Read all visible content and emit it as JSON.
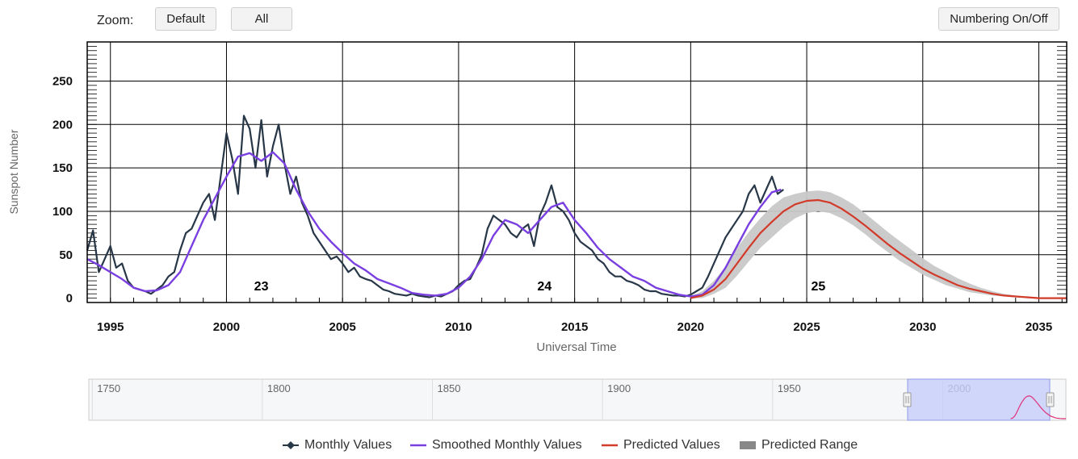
{
  "toolbar": {
    "zoom_label": "Zoom:",
    "default_label": "Default",
    "all_label": "All",
    "numbering_label": "Numbering On/Off"
  },
  "colors": {
    "monthly": "#283747",
    "smoothed": "#7a3fe0",
    "predicted": "#d23a2a",
    "range": "#c8c8c8",
    "navigator_mask": "#c7cdfa"
  },
  "chart_data": {
    "type": "line",
    "title": "",
    "xlabel": "Universal Time",
    "ylabel": "Sunspot Number",
    "xlim": [
      1994.0,
      2036.2
    ],
    "ylim": [
      -5,
      295
    ],
    "x_ticks": [
      1995,
      2000,
      2005,
      2010,
      2015,
      2020,
      2025,
      2030,
      2035
    ],
    "y_ticks": [
      0,
      50,
      100,
      150,
      200,
      250
    ],
    "grid": true,
    "legend_position": "bottom",
    "cycle_labels": [
      {
        "x": 2001.5,
        "text": "23"
      },
      {
        "x": 2013.7,
        "text": "24"
      },
      {
        "x": 2025.5,
        "text": "25"
      }
    ],
    "series": [
      {
        "name": "Monthly Values",
        "x": [
          1994.0,
          1994.25,
          1994.5,
          1994.75,
          1995.0,
          1995.25,
          1995.5,
          1995.75,
          1996.0,
          1996.25,
          1996.5,
          1996.75,
          1997.0,
          1997.25,
          1997.5,
          1997.75,
          1998.0,
          1998.25,
          1998.5,
          1998.75,
          1999.0,
          1999.25,
          1999.5,
          1999.75,
          2000.0,
          2000.25,
          2000.5,
          2000.75,
          2001.0,
          2001.25,
          2001.5,
          2001.75,
          2002.0,
          2002.25,
          2002.5,
          2002.75,
          2003.0,
          2003.25,
          2003.5,
          2003.75,
          2004.0,
          2004.25,
          2004.5,
          2004.75,
          2005.0,
          2005.25,
          2005.5,
          2005.75,
          2006.0,
          2006.25,
          2006.5,
          2006.75,
          2007.0,
          2007.25,
          2007.5,
          2007.75,
          2008.0,
          2008.25,
          2008.5,
          2008.75,
          2009.0,
          2009.25,
          2009.5,
          2009.75,
          2010.0,
          2010.25,
          2010.5,
          2010.75,
          2011.0,
          2011.25,
          2011.5,
          2011.75,
          2012.0,
          2012.25,
          2012.5,
          2012.75,
          2013.0,
          2013.25,
          2013.5,
          2013.75,
          2014.0,
          2014.25,
          2014.5,
          2014.75,
          2015.0,
          2015.25,
          2015.5,
          2015.75,
          2016.0,
          2016.25,
          2016.5,
          2016.75,
          2017.0,
          2017.25,
          2017.5,
          2017.75,
          2018.0,
          2018.25,
          2018.5,
          2018.75,
          2019.0,
          2019.25,
          2019.5,
          2019.75,
          2020.0,
          2020.25,
          2020.5,
          2020.75,
          2021.0,
          2021.25,
          2021.5,
          2021.75,
          2022.0,
          2022.25,
          2022.5,
          2022.75,
          2023.0,
          2023.25,
          2023.5,
          2023.75,
          2024.0
        ],
        "values": [
          55,
          78,
          30,
          45,
          60,
          35,
          40,
          20,
          12,
          10,
          8,
          5,
          10,
          15,
          25,
          30,
          55,
          75,
          80,
          95,
          110,
          120,
          90,
          140,
          190,
          160,
          120,
          210,
          195,
          150,
          205,
          140,
          175,
          200,
          155,
          120,
          140,
          110,
          95,
          75,
          65,
          55,
          45,
          48,
          40,
          30,
          35,
          25,
          22,
          20,
          15,
          10,
          8,
          5,
          4,
          3,
          5,
          3,
          2,
          1,
          3,
          2,
          5,
          8,
          15,
          20,
          22,
          35,
          50,
          80,
          95,
          90,
          85,
          75,
          70,
          80,
          85,
          60,
          95,
          110,
          130,
          105,
          100,
          90,
          75,
          65,
          60,
          55,
          45,
          40,
          30,
          25,
          25,
          20,
          18,
          15,
          10,
          8,
          8,
          5,
          4,
          3,
          3,
          2,
          4,
          8,
          12,
          25,
          40,
          55,
          70,
          80,
          90,
          100,
          120,
          130,
          110,
          125,
          140,
          120,
          125
        ],
        "color": "#283747"
      },
      {
        "name": "Smoothed Monthly Values",
        "x": [
          1994.0,
          1994.5,
          1995.0,
          1995.5,
          1996.0,
          1996.5,
          1997.0,
          1997.5,
          1998.0,
          1998.5,
          1999.0,
          1999.5,
          2000.0,
          2000.5,
          2001.0,
          2001.5,
          2002.0,
          2002.5,
          2003.0,
          2003.5,
          2004.0,
          2004.5,
          2005.0,
          2005.5,
          2006.0,
          2006.5,
          2007.0,
          2007.5,
          2008.0,
          2008.5,
          2009.0,
          2009.5,
          2010.0,
          2010.5,
          2011.0,
          2011.5,
          2012.0,
          2012.5,
          2013.0,
          2013.5,
          2014.0,
          2014.5,
          2015.0,
          2015.5,
          2016.0,
          2016.5,
          2017.0,
          2017.5,
          2018.0,
          2018.5,
          2019.0,
          2019.5,
          2020.0,
          2020.5,
          2021.0,
          2021.5,
          2022.0,
          2022.5,
          2023.0,
          2023.5,
          2023.9
        ],
        "values": [
          45,
          38,
          30,
          22,
          12,
          8,
          9,
          15,
          30,
          60,
          90,
          115,
          140,
          163,
          167,
          158,
          168,
          155,
          125,
          100,
          80,
          65,
          52,
          40,
          32,
          22,
          17,
          12,
          6,
          4,
          3,
          5,
          12,
          25,
          45,
          72,
          90,
          85,
          75,
          90,
          105,
          110,
          90,
          75,
          58,
          45,
          35,
          25,
          20,
          12,
          8,
          4,
          2,
          4,
          15,
          35,
          60,
          85,
          105,
          122,
          125
        ],
        "color": "#7a3fe0"
      },
      {
        "name": "Predicted Values",
        "x": [
          2020.0,
          2020.5,
          2021.0,
          2021.5,
          2022.0,
          2022.5,
          2023.0,
          2023.5,
          2024.0,
          2024.5,
          2025.0,
          2025.5,
          2026.0,
          2026.5,
          2027.0,
          2027.5,
          2028.0,
          2028.5,
          2029.0,
          2029.5,
          2030.0,
          2030.5,
          2031.0,
          2031.5,
          2032.0,
          2032.5,
          2033.0,
          2033.5,
          2034.0,
          2034.5,
          2035.0,
          2035.5,
          2036.2
        ],
        "values": [
          0,
          3,
          10,
          22,
          40,
          58,
          75,
          88,
          100,
          108,
          112,
          113,
          110,
          103,
          94,
          84,
          73,
          62,
          52,
          43,
          34,
          27,
          21,
          15,
          11,
          8,
          5,
          3,
          2,
          1,
          0,
          0,
          0
        ],
        "color": "#d23a2a"
      },
      {
        "name": "Predicted Range",
        "x": [
          2020.0,
          2020.5,
          2021.0,
          2021.5,
          2022.0,
          2022.5,
          2023.0,
          2023.5,
          2024.0,
          2024.5,
          2025.0,
          2025.5,
          2026.0,
          2026.5,
          2027.0,
          2027.5,
          2028.0,
          2028.5,
          2029.0,
          2029.5,
          2030.0,
          2030.5,
          2031.0,
          2031.5,
          2032.0,
          2032.5,
          2033.0,
          2033.5,
          2034.0,
          2034.5,
          2035.0,
          2035.5,
          2036.2
        ],
        "low": [
          0,
          0,
          5,
          12,
          26,
          42,
          58,
          70,
          82,
          92,
          98,
          100,
          98,
          92,
          84,
          74,
          63,
          53,
          43,
          35,
          27,
          21,
          15,
          11,
          7,
          5,
          3,
          2,
          1,
          0,
          0,
          0,
          0
        ],
        "high": [
          2,
          8,
          20,
          36,
          58,
          76,
          92,
          106,
          116,
          120,
          123,
          124,
          122,
          116,
          108,
          98,
          87,
          76,
          66,
          56,
          46,
          37,
          30,
          23,
          17,
          12,
          8,
          5,
          3,
          2,
          1,
          0,
          0
        ],
        "color": "#c8c8c8"
      }
    ],
    "navigator": {
      "x_ticks": [
        1750,
        1800,
        1850,
        1900,
        1950,
        2000
      ],
      "xlim": [
        1749,
        2036.2
      ]
    }
  },
  "legend": [
    {
      "key": "monthly",
      "label": "Monthly Values"
    },
    {
      "key": "smoothed",
      "label": "Smoothed Monthly Values"
    },
    {
      "key": "predicted",
      "label": "Predicted Values"
    },
    {
      "key": "range",
      "label": "Predicted Range"
    }
  ]
}
